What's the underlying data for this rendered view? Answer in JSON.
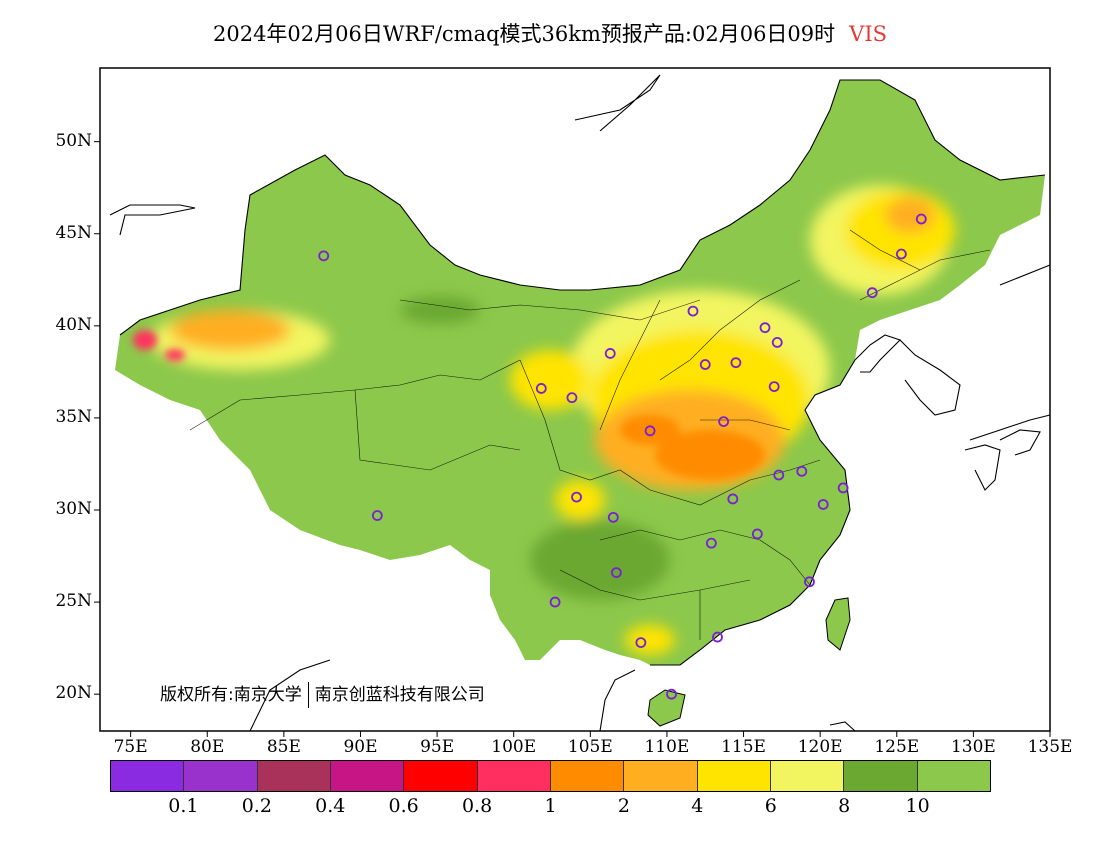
{
  "title": {
    "main": "2024年02月06日WRF/cmaq模式36km预报产品:02月06日09时",
    "variable": "VIS"
  },
  "axes": {
    "lat_labels": [
      "50N",
      "45N",
      "40N",
      "35N",
      "30N",
      "25N",
      "20N"
    ],
    "lat_values": [
      50,
      45,
      40,
      35,
      30,
      25,
      20
    ],
    "lon_labels": [
      "75E",
      "80E",
      "85E",
      "90E",
      "95E",
      "100E",
      "105E",
      "110E",
      "115E",
      "120E",
      "125E",
      "130E",
      "135E"
    ],
    "lon_values": [
      75,
      80,
      85,
      90,
      95,
      100,
      105,
      110,
      115,
      120,
      125,
      130,
      135
    ],
    "lon_range": [
      73,
      135
    ],
    "lat_range": [
      18,
      54
    ]
  },
  "copyright": {
    "prefix": "版权所有:",
    "org1": "南京大学",
    "org2": "南京创蓝科技有限公司"
  },
  "legend": {
    "colors": [
      "#8a2be2",
      "#9932cc",
      "#a8325a",
      "#c71585",
      "#ff0000",
      "#ff3060",
      "#ff8c00",
      "#ffae20",
      "#ffe400",
      "#f2f560",
      "#6aa832",
      "#8cc84b"
    ],
    "labels": [
      "0.1",
      "0.2",
      "0.4",
      "0.6",
      "0.8",
      "1",
      "2",
      "4",
      "6",
      "8",
      "10"
    ]
  },
  "stations": [
    {
      "lon": 87.6,
      "lat": 43.8
    },
    {
      "lon": 91.1,
      "lat": 29.7
    },
    {
      "lon": 101.8,
      "lat": 36.6
    },
    {
      "lon": 103.8,
      "lat": 36.1
    },
    {
      "lon": 106.3,
      "lat": 38.5
    },
    {
      "lon": 108.9,
      "lat": 34.3
    },
    {
      "lon": 111.7,
      "lat": 40.8
    },
    {
      "lon": 112.5,
      "lat": 37.9
    },
    {
      "lon": 114.5,
      "lat": 38.0
    },
    {
      "lon": 116.4,
      "lat": 39.9
    },
    {
      "lon": 117.2,
      "lat": 39.1
    },
    {
      "lon": 117.0,
      "lat": 36.7
    },
    {
      "lon": 113.7,
      "lat": 34.8
    },
    {
      "lon": 117.3,
      "lat": 31.9
    },
    {
      "lon": 118.8,
      "lat": 32.1
    },
    {
      "lon": 121.5,
      "lat": 31.2
    },
    {
      "lon": 120.2,
      "lat": 30.3
    },
    {
      "lon": 114.3,
      "lat": 30.6
    },
    {
      "lon": 104.1,
      "lat": 30.7
    },
    {
      "lon": 106.5,
      "lat": 29.6
    },
    {
      "lon": 106.7,
      "lat": 26.6
    },
    {
      "lon": 112.9,
      "lat": 28.2
    },
    {
      "lon": 115.9,
      "lat": 28.7
    },
    {
      "lon": 119.3,
      "lat": 26.1
    },
    {
      "lon": 113.3,
      "lat": 23.1
    },
    {
      "lon": 108.3,
      "lat": 22.8
    },
    {
      "lon": 102.7,
      "lat": 25.0
    },
    {
      "lon": 110.3,
      "lat": 20.0
    },
    {
      "lon": 123.4,
      "lat": 41.8
    },
    {
      "lon": 125.3,
      "lat": 43.9
    },
    {
      "lon": 126.6,
      "lat": 45.8
    }
  ]
}
